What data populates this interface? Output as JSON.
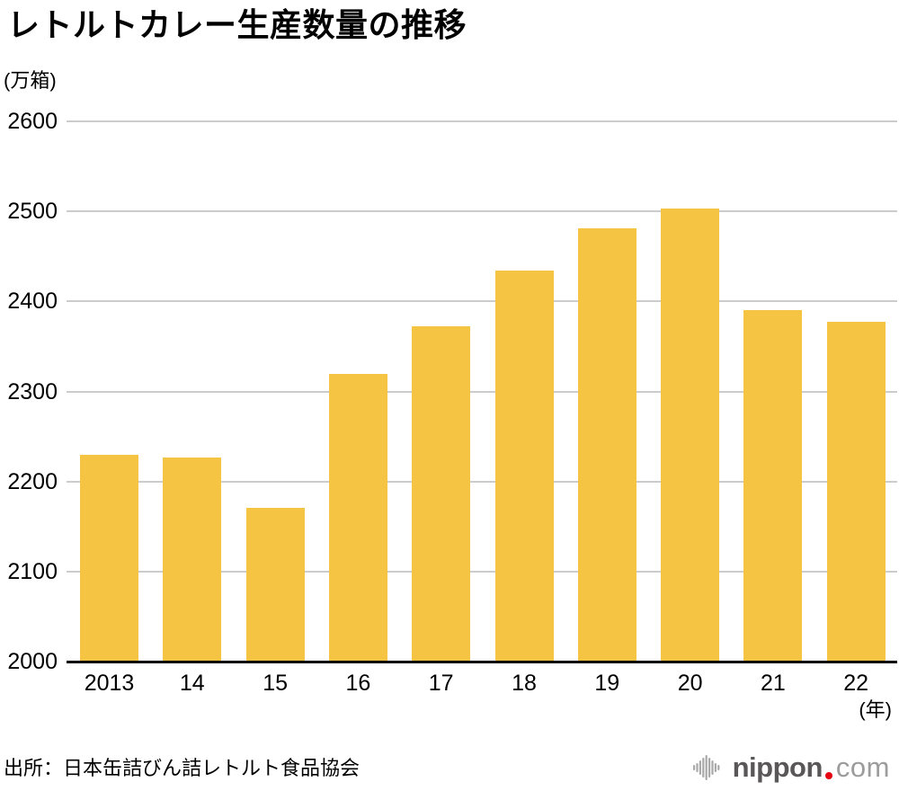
{
  "page": {
    "title": "レトルトカレー生産数量の推移",
    "y_unit_label": "(万箱)",
    "x_unit_label": "(年)",
    "source": "出所：日本缶詰びん詰レトルト食品協会"
  },
  "logo": {
    "brand": "nippon",
    "tld": "com",
    "icon": "waveform-icon",
    "dot_color": "#e60012"
  },
  "colors": {
    "bar": "#f6c443",
    "gridline": "#cccccc",
    "axis": "#000000",
    "text": "#000000",
    "logo_dark": "#595757",
    "logo_light": "#9c9c9c",
    "logo_icon_gray": "#a9a9a9"
  },
  "chart_data": {
    "type": "bar",
    "title": "レトルトカレー生産数量の推移",
    "categories": [
      "2013",
      "14",
      "15",
      "16",
      "17",
      "18",
      "19",
      "20",
      "21",
      "22"
    ],
    "values": [
      2230,
      2227,
      2171,
      2319,
      2372,
      2434,
      2481,
      2503,
      2390,
      2377
    ],
    "xlabel": "年",
    "ylabel": "万箱",
    "ylim": [
      2000,
      2600
    ],
    "yticks": [
      2000,
      2100,
      2200,
      2300,
      2400,
      2500,
      2600
    ],
    "grid": true,
    "legend": false,
    "bar_color": "#f6c443"
  }
}
